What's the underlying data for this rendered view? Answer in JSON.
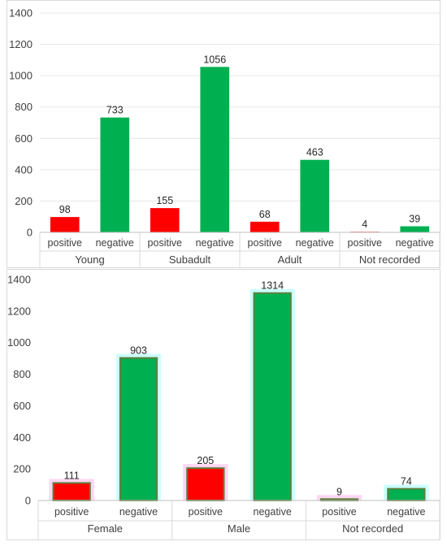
{
  "charts": {
    "top": {
      "chart_data": {
        "type": "bar",
        "groups": [
          "Young",
          "Subadult",
          "Adult",
          "Not recorded"
        ],
        "categories": [
          "positive",
          "negative",
          "positive",
          "negative",
          "positive",
          "negative",
          "positive",
          "negative"
        ],
        "values": [
          98,
          733,
          155,
          1056,
          68,
          463,
          4,
          39
        ],
        "value_labels": [
          "98",
          "733",
          "155",
          "1056",
          "68",
          "463",
          "4",
          "39"
        ],
        "ylim": [
          0,
          1400
        ],
        "yticks": [
          "0",
          "200",
          "400",
          "600",
          "800",
          "1000",
          "1200",
          "1400"
        ],
        "grid": true,
        "colors": {
          "positive": "#ff0000",
          "negative": "#00b050"
        }
      }
    },
    "bottom": {
      "chart_data": {
        "type": "bar",
        "groups": [
          "Female",
          "Male",
          "Not recorded"
        ],
        "categories": [
          "positive",
          "negative",
          "positive",
          "negative",
          "positive",
          "negative"
        ],
        "values": [
          111,
          903,
          205,
          1314,
          9,
          74
        ],
        "value_labels": [
          "111",
          "903",
          "205",
          "1314",
          "9",
          "74"
        ],
        "ylim": [
          0,
          1400
        ],
        "yticks": [
          "0",
          "200",
          "400",
          "600",
          "800",
          "1000",
          "1200",
          "1400"
        ],
        "grid": false,
        "colors": {
          "positive": "#ff0000",
          "negative": "#00b050",
          "positive_halo": "#ffd6f2",
          "negative_halo": "#ccffff",
          "bar_outline": "#5f7f3f"
        }
      }
    }
  }
}
